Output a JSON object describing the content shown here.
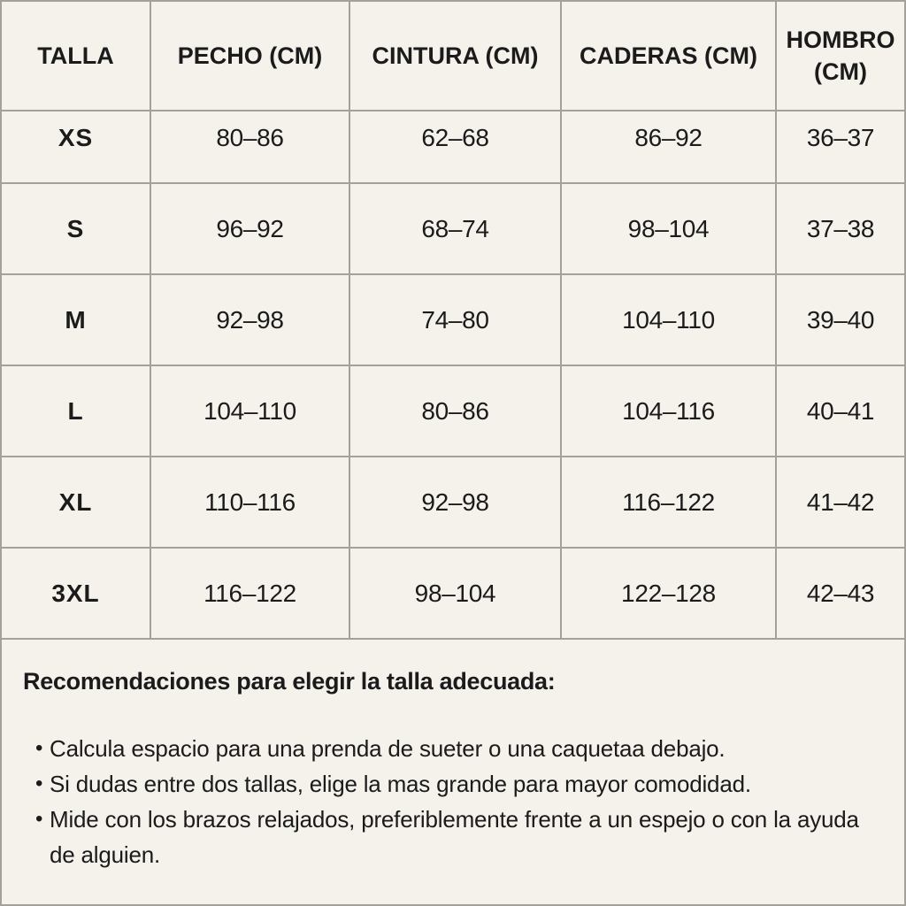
{
  "page": {
    "background": "#f5f2ec",
    "text_color": "#1b1b1b",
    "grid_line_color": "#a3a19c"
  },
  "size_table": {
    "columns": [
      "TALLA",
      "PECHO (CM)",
      "CINTURA (CM)",
      "CADERAS (CM)",
      "HOMBRO (CM)"
    ],
    "rows": [
      [
        "XS",
        "80–86",
        "62–68",
        "86–92",
        "36–37"
      ],
      [
        "S",
        "96–92",
        "68–74",
        "98–104",
        "37–38"
      ],
      [
        "M",
        "92–98",
        "74–80",
        "104–110",
        "39–40"
      ],
      [
        "L",
        "104–110",
        "80–86",
        "104–116",
        "40–41"
      ],
      [
        "XL",
        "110–116",
        "92–98",
        "116–122",
        "41–42"
      ],
      [
        "3XL",
        "116–122",
        "98–104",
        "122–128",
        "42–43"
      ]
    ]
  },
  "recommendations": {
    "title": "Recomendaciones para elegir la talla adecuada:",
    "bullet": "•",
    "items": [
      "Calcula espacio para una prenda de sueter o una caquetaa debajo.",
      "Si dudas entre dos tallas, elige la mas grande para mayor comodidad.",
      "Mide con los brazos relajados, preferiblemente frente a un espejo o con la ayuda de alguien."
    ]
  }
}
